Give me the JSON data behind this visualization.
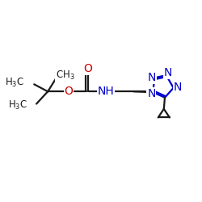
{
  "bg_color": "#ffffff",
  "bond_color": "#1a1a1a",
  "nitrogen_color": "#0000cc",
  "oxygen_color": "#cc0000",
  "font_size": 8.5,
  "figsize": [
    2.5,
    2.5
  ],
  "dpi": 100,
  "xlim": [
    0,
    10
  ],
  "ylim": [
    1,
    9
  ]
}
